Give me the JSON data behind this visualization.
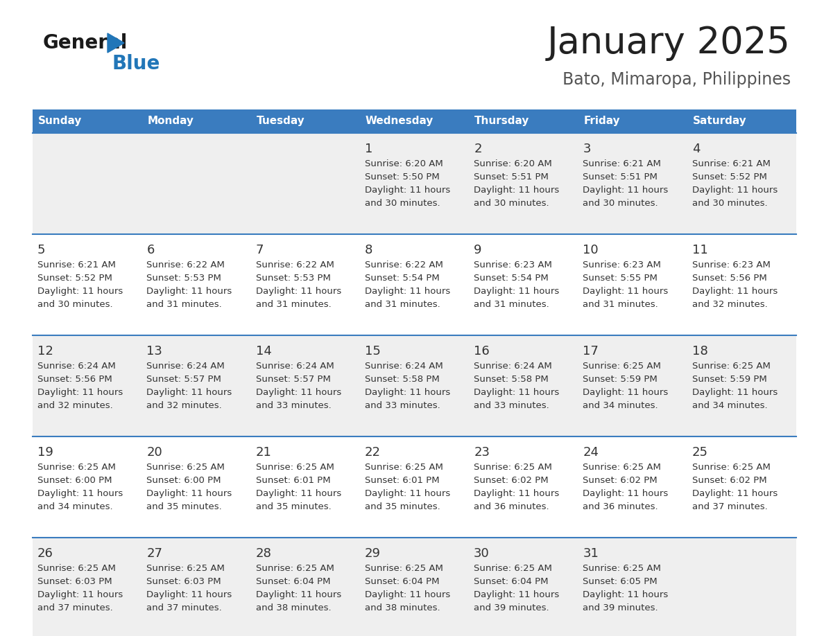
{
  "title": "January 2025",
  "subtitle": "Bato, Mimaropa, Philippines",
  "days_of_week": [
    "Sunday",
    "Monday",
    "Tuesday",
    "Wednesday",
    "Thursday",
    "Friday",
    "Saturday"
  ],
  "header_bg": "#3a7cbf",
  "header_text_color": "#ffffff",
  "row_bg_light": "#efefef",
  "row_bg_white": "#ffffff",
  "cell_border_color": "#3a7cbf",
  "day_number_color": "#333333",
  "text_color": "#333333",
  "title_color": "#222222",
  "subtitle_color": "#555555",
  "logo_general_color": "#1a1a1a",
  "logo_blue_color": "#2176b8",
  "calendar_data": [
    [
      null,
      null,
      null,
      {
        "day": 1,
        "sunrise": "6:20 AM",
        "sunset": "5:50 PM",
        "daylight_h": "11 hours",
        "daylight_m": "30 minutes."
      },
      {
        "day": 2,
        "sunrise": "6:20 AM",
        "sunset": "5:51 PM",
        "daylight_h": "11 hours",
        "daylight_m": "30 minutes."
      },
      {
        "day": 3,
        "sunrise": "6:21 AM",
        "sunset": "5:51 PM",
        "daylight_h": "11 hours",
        "daylight_m": "30 minutes."
      },
      {
        "day": 4,
        "sunrise": "6:21 AM",
        "sunset": "5:52 PM",
        "daylight_h": "11 hours",
        "daylight_m": "30 minutes."
      }
    ],
    [
      {
        "day": 5,
        "sunrise": "6:21 AM",
        "sunset": "5:52 PM",
        "daylight_h": "11 hours",
        "daylight_m": "30 minutes."
      },
      {
        "day": 6,
        "sunrise": "6:22 AM",
        "sunset": "5:53 PM",
        "daylight_h": "11 hours",
        "daylight_m": "31 minutes."
      },
      {
        "day": 7,
        "sunrise": "6:22 AM",
        "sunset": "5:53 PM",
        "daylight_h": "11 hours",
        "daylight_m": "31 minutes."
      },
      {
        "day": 8,
        "sunrise": "6:22 AM",
        "sunset": "5:54 PM",
        "daylight_h": "11 hours",
        "daylight_m": "31 minutes."
      },
      {
        "day": 9,
        "sunrise": "6:23 AM",
        "sunset": "5:54 PM",
        "daylight_h": "11 hours",
        "daylight_m": "31 minutes."
      },
      {
        "day": 10,
        "sunrise": "6:23 AM",
        "sunset": "5:55 PM",
        "daylight_h": "11 hours",
        "daylight_m": "31 minutes."
      },
      {
        "day": 11,
        "sunrise": "6:23 AM",
        "sunset": "5:56 PM",
        "daylight_h": "11 hours",
        "daylight_m": "32 minutes."
      }
    ],
    [
      {
        "day": 12,
        "sunrise": "6:24 AM",
        "sunset": "5:56 PM",
        "daylight_h": "11 hours",
        "daylight_m": "32 minutes."
      },
      {
        "day": 13,
        "sunrise": "6:24 AM",
        "sunset": "5:57 PM",
        "daylight_h": "11 hours",
        "daylight_m": "32 minutes."
      },
      {
        "day": 14,
        "sunrise": "6:24 AM",
        "sunset": "5:57 PM",
        "daylight_h": "11 hours",
        "daylight_m": "33 minutes."
      },
      {
        "day": 15,
        "sunrise": "6:24 AM",
        "sunset": "5:58 PM",
        "daylight_h": "11 hours",
        "daylight_m": "33 minutes."
      },
      {
        "day": 16,
        "sunrise": "6:24 AM",
        "sunset": "5:58 PM",
        "daylight_h": "11 hours",
        "daylight_m": "33 minutes."
      },
      {
        "day": 17,
        "sunrise": "6:25 AM",
        "sunset": "5:59 PM",
        "daylight_h": "11 hours",
        "daylight_m": "34 minutes."
      },
      {
        "day": 18,
        "sunrise": "6:25 AM",
        "sunset": "5:59 PM",
        "daylight_h": "11 hours",
        "daylight_m": "34 minutes."
      }
    ],
    [
      {
        "day": 19,
        "sunrise": "6:25 AM",
        "sunset": "6:00 PM",
        "daylight_h": "11 hours",
        "daylight_m": "34 minutes."
      },
      {
        "day": 20,
        "sunrise": "6:25 AM",
        "sunset": "6:00 PM",
        "daylight_h": "11 hours",
        "daylight_m": "35 minutes."
      },
      {
        "day": 21,
        "sunrise": "6:25 AM",
        "sunset": "6:01 PM",
        "daylight_h": "11 hours",
        "daylight_m": "35 minutes."
      },
      {
        "day": 22,
        "sunrise": "6:25 AM",
        "sunset": "6:01 PM",
        "daylight_h": "11 hours",
        "daylight_m": "35 minutes."
      },
      {
        "day": 23,
        "sunrise": "6:25 AM",
        "sunset": "6:02 PM",
        "daylight_h": "11 hours",
        "daylight_m": "36 minutes."
      },
      {
        "day": 24,
        "sunrise": "6:25 AM",
        "sunset": "6:02 PM",
        "daylight_h": "11 hours",
        "daylight_m": "36 minutes."
      },
      {
        "day": 25,
        "sunrise": "6:25 AM",
        "sunset": "6:02 PM",
        "daylight_h": "11 hours",
        "daylight_m": "37 minutes."
      }
    ],
    [
      {
        "day": 26,
        "sunrise": "6:25 AM",
        "sunset": "6:03 PM",
        "daylight_h": "11 hours",
        "daylight_m": "37 minutes."
      },
      {
        "day": 27,
        "sunrise": "6:25 AM",
        "sunset": "6:03 PM",
        "daylight_h": "11 hours",
        "daylight_m": "37 minutes."
      },
      {
        "day": 28,
        "sunrise": "6:25 AM",
        "sunset": "6:04 PM",
        "daylight_h": "11 hours",
        "daylight_m": "38 minutes."
      },
      {
        "day": 29,
        "sunrise": "6:25 AM",
        "sunset": "6:04 PM",
        "daylight_h": "11 hours",
        "daylight_m": "38 minutes."
      },
      {
        "day": 30,
        "sunrise": "6:25 AM",
        "sunset": "6:04 PM",
        "daylight_h": "11 hours",
        "daylight_m": "39 minutes."
      },
      {
        "day": 31,
        "sunrise": "6:25 AM",
        "sunset": "6:05 PM",
        "daylight_h": "11 hours",
        "daylight_m": "39 minutes."
      },
      null
    ]
  ]
}
